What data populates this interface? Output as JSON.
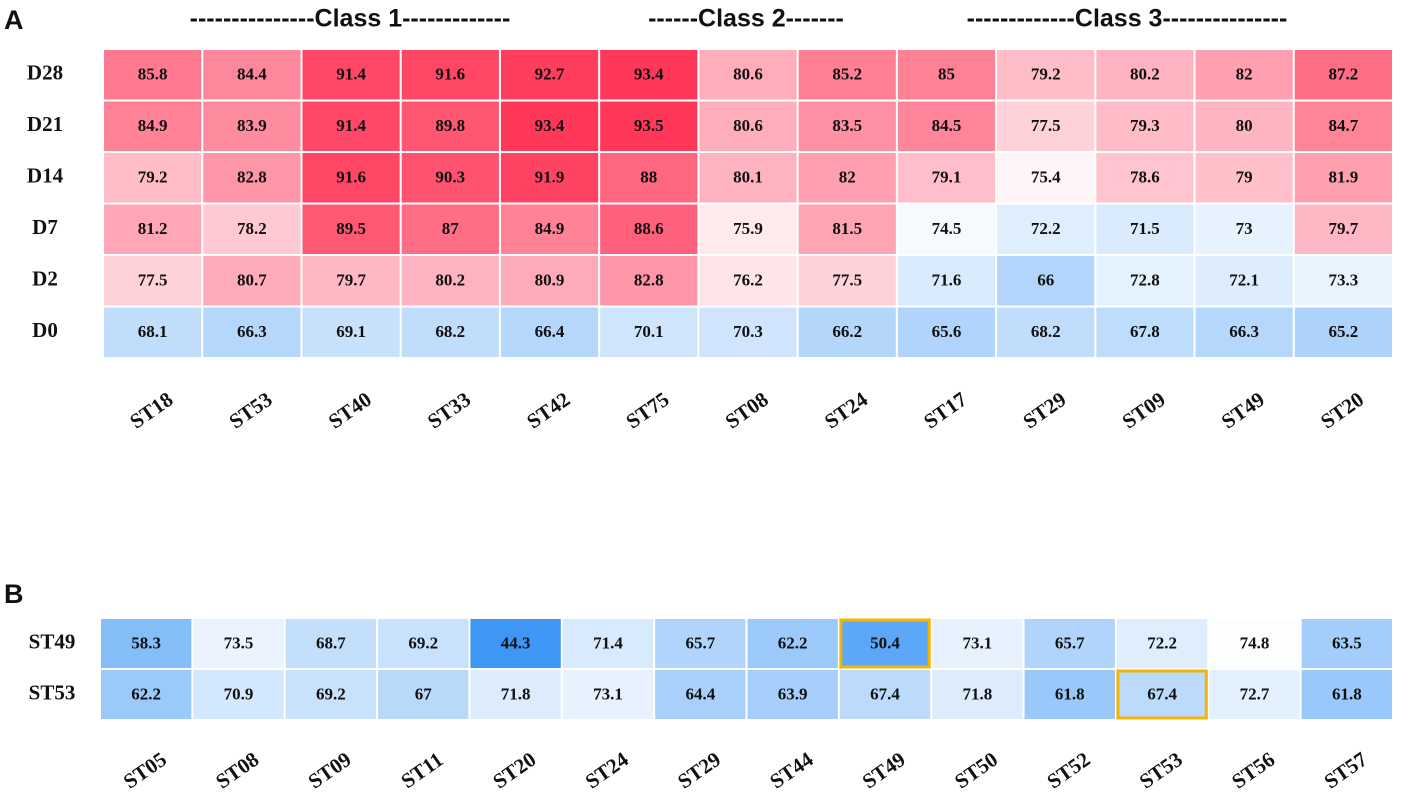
{
  "chart_data": [
    {
      "type": "heatmap",
      "panel": "A",
      "column_groups": [
        "---------------Class 1-------------",
        "------Class 2-------",
        "-------------Class 3---------------"
      ],
      "rows": [
        "D28",
        "D21",
        "D14",
        "D7",
        "D2",
        "D0"
      ],
      "columns": [
        "ST18",
        "ST53",
        "ST40",
        "ST33",
        "ST42",
        "ST75",
        "ST08",
        "ST24",
        "ST17",
        "ST29",
        "ST09",
        "ST49",
        "ST20"
      ],
      "values": [
        [
          85.8,
          84.4,
          91.4,
          91.6,
          92.7,
          93.4,
          80.6,
          85.2,
          85,
          79.2,
          80.2,
          82,
          87.2
        ],
        [
          84.9,
          83.9,
          91.4,
          89.8,
          93.4,
          93.5,
          80.6,
          83.5,
          84.5,
          77.5,
          79.3,
          80,
          84.7
        ],
        [
          79.2,
          82.8,
          91.6,
          90.3,
          91.9,
          88,
          80.1,
          82,
          79.1,
          75.4,
          78.6,
          79,
          81.9
        ],
        [
          81.2,
          78.2,
          89.5,
          87,
          84.9,
          88.6,
          75.9,
          81.5,
          74.5,
          72.2,
          71.5,
          73,
          79.7
        ],
        [
          77.5,
          80.7,
          79.7,
          80.2,
          80.9,
          82.8,
          76.2,
          77.5,
          71.6,
          66,
          72.8,
          72.1,
          73.3
        ],
        [
          68.1,
          66.3,
          69.1,
          68.2,
          66.4,
          70.1,
          70.3,
          66.2,
          65.6,
          68.2,
          67.8,
          66.3,
          65.2
        ]
      ],
      "zlim": [
        44,
        94
      ],
      "zmid": 75,
      "low_color": "#3d96f5",
      "high_color": "#ff3355"
    },
    {
      "type": "heatmap",
      "panel": "B",
      "rows": [
        "ST49",
        "ST53"
      ],
      "columns": [
        "ST05",
        "ST08",
        "ST09",
        "ST11",
        "ST20",
        "ST24",
        "ST29",
        "ST44",
        "ST49",
        "ST50",
        "ST52",
        "ST53",
        "ST56",
        "ST57"
      ],
      "values": [
        [
          58.3,
          73.5,
          68.7,
          69.2,
          44.3,
          71.4,
          65.7,
          62.2,
          50.4,
          73.1,
          65.7,
          72.2,
          74.8,
          63.5
        ],
        [
          62.2,
          70.9,
          69.2,
          67,
          71.8,
          73.1,
          64.4,
          63.9,
          67.4,
          71.8,
          61.8,
          67.4,
          72.7,
          61.8
        ]
      ],
      "zlim": [
        44,
        94
      ],
      "zmid": 75,
      "low_color": "#3d96f5",
      "high_color": "#ff3355",
      "highlighted": [
        {
          "row": "ST49",
          "column": "ST49"
        },
        {
          "row": "ST53",
          "column": "ST53"
        }
      ],
      "highlight_color": "#f5b400"
    }
  ]
}
